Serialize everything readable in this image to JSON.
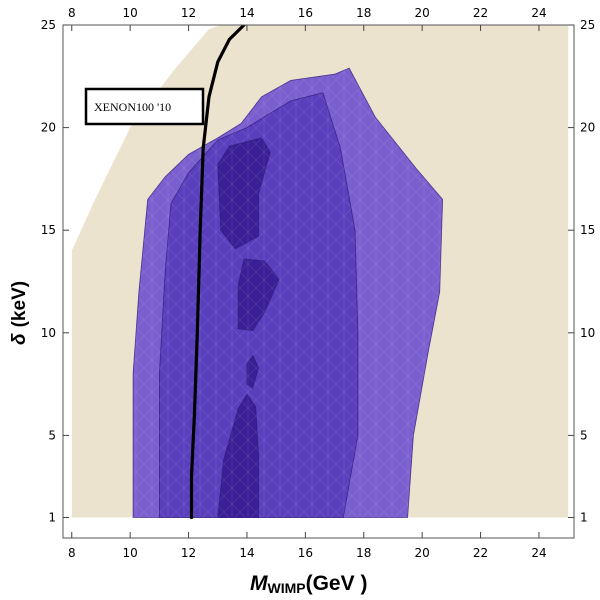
{
  "chart_data": {
    "type": "contour",
    "title": "",
    "xlabel": {
      "main": "M",
      "sub": "WIMP",
      "unit": "(GeV )"
    },
    "ylabel": {
      "symbol": "δ",
      "unit": "(keV)"
    },
    "xlim": [
      7.7,
      25.2
    ],
    "ylim": [
      0.0,
      25.0
    ],
    "x_ticks": [
      8,
      10,
      12,
      14,
      16,
      18,
      20,
      22,
      24
    ],
    "y_ticks": [
      1,
      5,
      10,
      15,
      20,
      25
    ],
    "colors": {
      "background": "#ece3ce",
      "frame": "#555555",
      "region_outer": "#7a5fcf",
      "region_mid": "#5a3fbd",
      "region_inner": "#3a1f96",
      "limit_line": "#000000"
    },
    "regions": [
      {
        "name": "allowed-region-outer",
        "points": [
          [
            8.0,
            14.0
          ],
          [
            8.8,
            16.5
          ],
          [
            10.0,
            20.0
          ],
          [
            11.5,
            22.8
          ],
          [
            12.7,
            24.8
          ],
          [
            13.1,
            25.0
          ],
          [
            25.0,
            25.0
          ],
          [
            25.0,
            1.0
          ],
          [
            8.0,
            1.0
          ]
        ]
      },
      {
        "name": "confidence-region-99",
        "points": [
          [
            10.1,
            1.0
          ],
          [
            10.1,
            8.0
          ],
          [
            10.3,
            12.0
          ],
          [
            10.6,
            16.5
          ],
          [
            11.2,
            17.6
          ],
          [
            12.0,
            18.7
          ],
          [
            13.0,
            19.5
          ],
          [
            13.8,
            20.2
          ],
          [
            14.5,
            21.5
          ],
          [
            15.5,
            22.3
          ],
          [
            17.0,
            22.6
          ],
          [
            17.5,
            22.9
          ],
          [
            18.4,
            20.5
          ],
          [
            19.8,
            18.0
          ],
          [
            20.7,
            16.5
          ],
          [
            20.6,
            12.0
          ],
          [
            20.2,
            9.0
          ],
          [
            19.7,
            5.0
          ],
          [
            19.5,
            1.0
          ]
        ]
      },
      {
        "name": "confidence-region-95",
        "points": [
          [
            11.0,
            1.0
          ],
          [
            11.0,
            8.0
          ],
          [
            11.2,
            13.0
          ],
          [
            11.4,
            16.3
          ],
          [
            12.0,
            17.8
          ],
          [
            13.0,
            19.4
          ],
          [
            14.0,
            20.0
          ],
          [
            14.8,
            20.7
          ],
          [
            15.5,
            21.3
          ],
          [
            16.6,
            21.7
          ],
          [
            17.2,
            19.0
          ],
          [
            17.7,
            15.0
          ],
          [
            17.8,
            10.0
          ],
          [
            17.8,
            5.0
          ],
          [
            17.3,
            1.0
          ]
        ]
      },
      {
        "name": "confidence-region-68-upper",
        "points": [
          [
            13.0,
            18.2
          ],
          [
            13.1,
            15.0
          ],
          [
            13.6,
            14.1
          ],
          [
            14.4,
            14.7
          ],
          [
            14.4,
            16.8
          ],
          [
            14.8,
            18.8
          ],
          [
            14.5,
            19.5
          ],
          [
            13.4,
            19.1
          ]
        ]
      },
      {
        "name": "confidence-region-68-middle",
        "points": [
          [
            13.7,
            10.2
          ],
          [
            13.7,
            12.3
          ],
          [
            13.9,
            13.6
          ],
          [
            14.6,
            13.5
          ],
          [
            15.1,
            12.6
          ],
          [
            14.6,
            11.0
          ],
          [
            14.2,
            10.1
          ]
        ]
      },
      {
        "name": "confidence-region-68-small",
        "points": [
          [
            14.0,
            7.5
          ],
          [
            14.0,
            8.5
          ],
          [
            14.2,
            8.9
          ],
          [
            14.4,
            8.3
          ],
          [
            14.2,
            7.3
          ]
        ]
      },
      {
        "name": "confidence-region-68-lower",
        "points": [
          [
            13.0,
            1.0
          ],
          [
            13.2,
            3.8
          ],
          [
            13.7,
            6.3
          ],
          [
            14.0,
            7.0
          ],
          [
            14.3,
            6.4
          ],
          [
            14.4,
            4.0
          ],
          [
            14.4,
            1.0
          ]
        ]
      }
    ],
    "limit_curve": {
      "label": "XENON100 '10",
      "points": [
        [
          12.1,
          1.0
        ],
        [
          12.1,
          3.0
        ],
        [
          12.2,
          6.0
        ],
        [
          12.3,
          10.0
        ],
        [
          12.4,
          15.0
        ],
        [
          12.5,
          19.0
        ],
        [
          12.7,
          21.5
        ],
        [
          13.0,
          23.2
        ],
        [
          13.4,
          24.3
        ],
        [
          13.9,
          25.0
        ]
      ]
    }
  }
}
